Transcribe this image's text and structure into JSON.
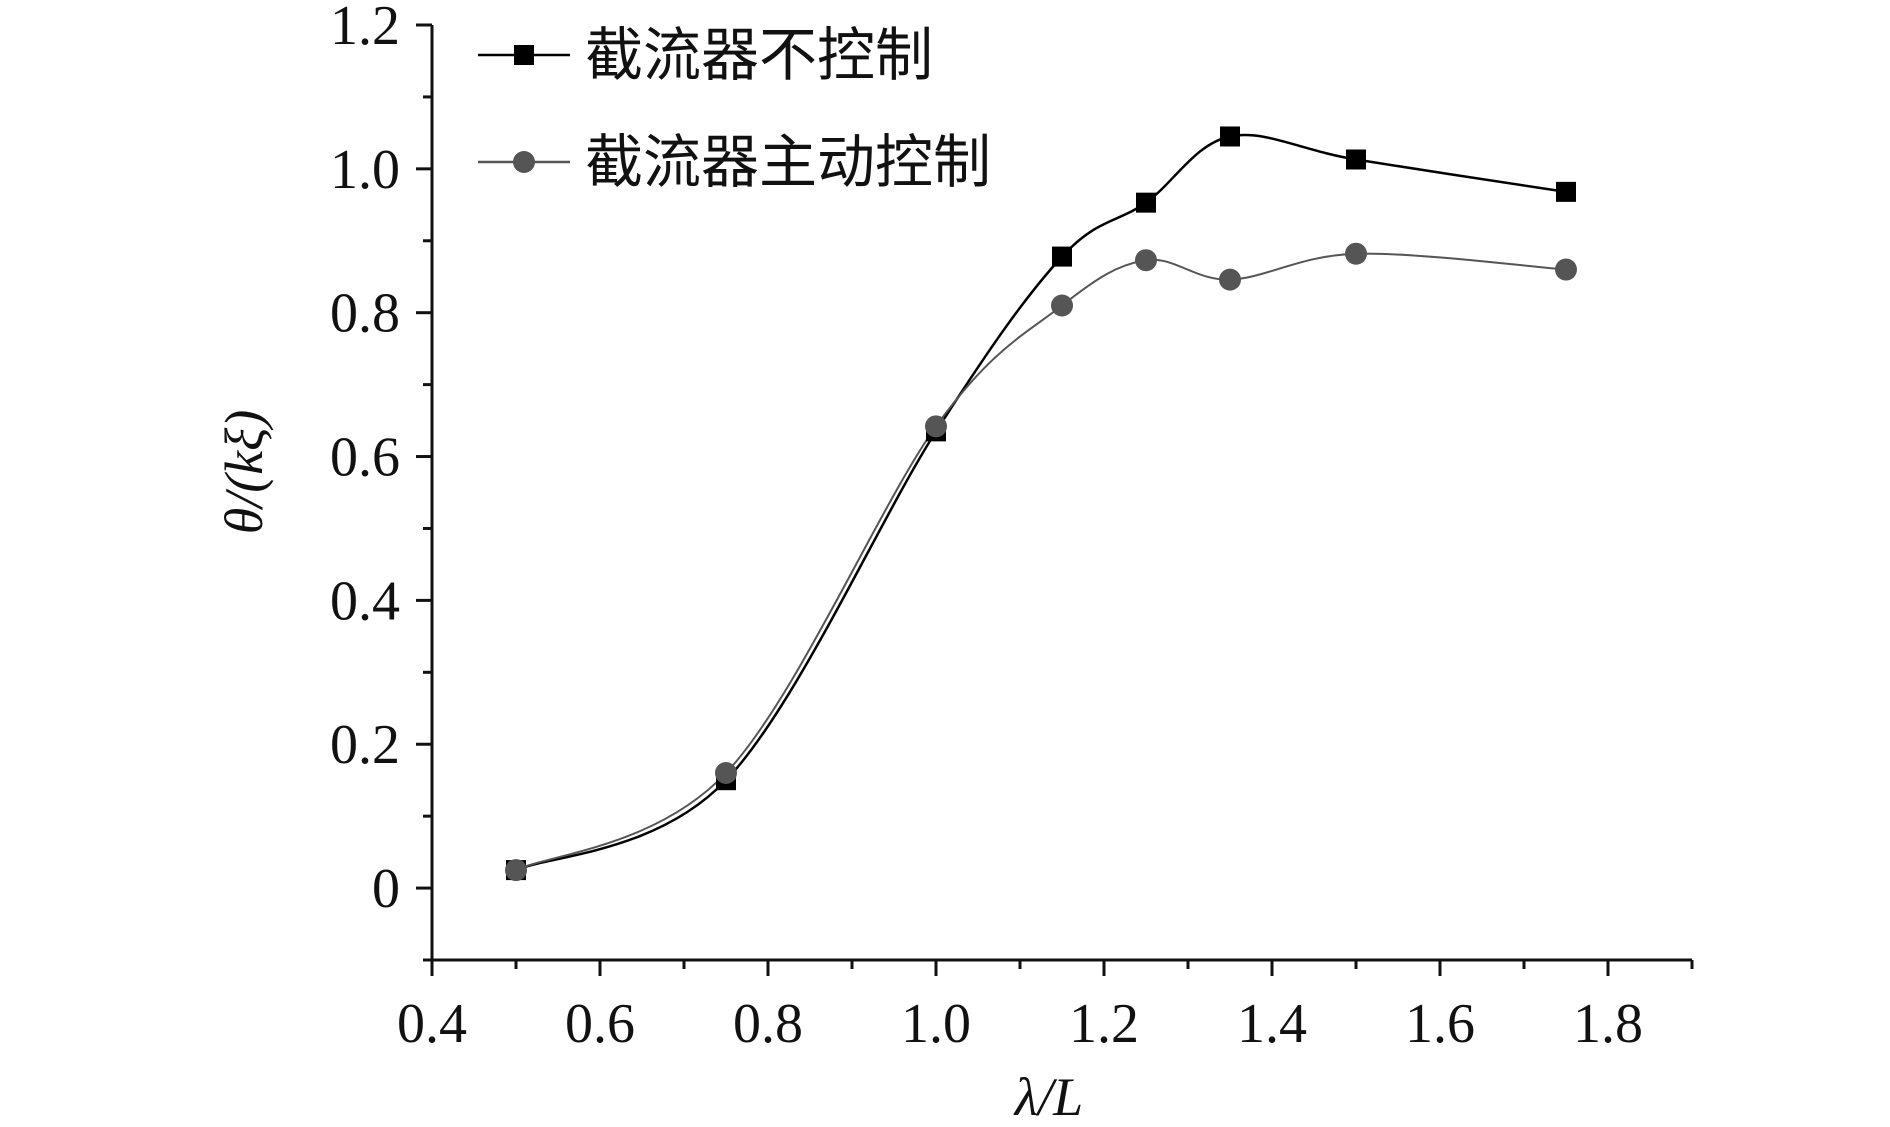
{
  "chart_data": {
    "type": "line",
    "xlabel": "λ/L",
    "ylabel": "θ/(kξ)",
    "xlim": [
      0.4,
      1.9
    ],
    "ylim": [
      -0.1,
      1.2
    ],
    "xticks": [
      0.4,
      0.6,
      0.8,
      1.0,
      1.2,
      1.4,
      1.6,
      1.8
    ],
    "xtick_labels": [
      "0.4",
      "0.6",
      "0.8",
      "1.0",
      "1.2",
      "1.4",
      "1.6",
      "1.8"
    ],
    "yticks": [
      0,
      0.2,
      0.4,
      0.6,
      0.8,
      1.0,
      1.2
    ],
    "ytick_labels": [
      "0",
      "0.2",
      "0.4",
      "0.6",
      "0.8",
      "1.0",
      "1.2"
    ],
    "grid": false,
    "legend_position": "top-left",
    "series": [
      {
        "name": "截流器不控制",
        "marker": "square",
        "color": "#000000",
        "x": [
          0.5,
          0.75,
          1.0,
          1.15,
          1.25,
          1.35,
          1.5,
          1.75
        ],
        "y": [
          0.025,
          0.15,
          0.635,
          0.878,
          0.953,
          1.045,
          1.013,
          0.968
        ]
      },
      {
        "name": "截流器主动控制",
        "marker": "circle",
        "color": "#555555",
        "x": [
          0.5,
          0.75,
          1.0,
          1.15,
          1.25,
          1.35,
          1.5,
          1.75
        ],
        "y": [
          0.025,
          0.16,
          0.642,
          0.81,
          0.873,
          0.846,
          0.882,
          0.86
        ]
      }
    ]
  }
}
